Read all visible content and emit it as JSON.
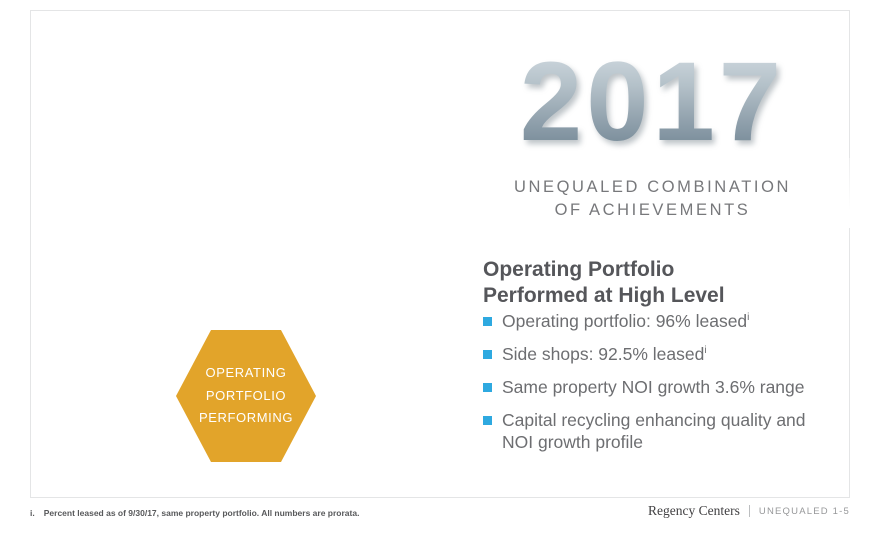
{
  "slide": {
    "year_graphic": "2017",
    "subtitle_line1": "UNEQUALED COMBINATION",
    "subtitle_line2": "OF ACHIEVEMENTS",
    "heading_line1": "Operating Portfolio",
    "heading_line2": "Performed at High Level",
    "bullets": [
      {
        "text": "Operating portfolio: 96% leased",
        "sup": "i"
      },
      {
        "text": "Side shops: 92.5% leased",
        "sup": "i"
      },
      {
        "text": "Same property NOI growth 3.6% range",
        "sup": ""
      },
      {
        "text": "Capital recycling enhancing quality and NOI growth profile",
        "sup": ""
      }
    ],
    "hexagon": {
      "line1": "OPERATING",
      "line2": "PORTFOLIO",
      "line3": "PERFORMING",
      "color": "#E2A42A"
    },
    "footnote": {
      "marker": "i.",
      "text": "Percent leased as of 9/30/17, same property portfolio. All numbers are prorata."
    },
    "footer": {
      "brand": "Regency Centers",
      "page_label": "UNEQUALED 1-5"
    },
    "colors": {
      "bullet_square": "#2EA9E0",
      "heading": "#55565A",
      "body": "#6D6E71"
    }
  }
}
